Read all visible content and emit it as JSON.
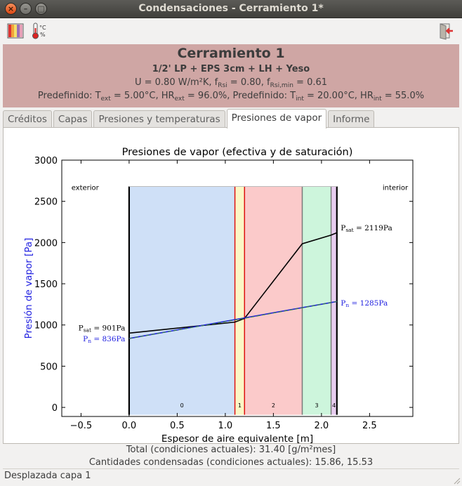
{
  "window": {
    "title": "Condensaciones - Cerramiento 1*",
    "close_glyph": "×",
    "minimize_glyph": "–",
    "maximize_glyph": "□"
  },
  "toolbar": {
    "icons": [
      "materials-colors-icon",
      "thermometer-humidity-icon",
      "exit-icon"
    ]
  },
  "header": {
    "title": "Cerramiento 1",
    "composition": "1/2' LP + EPS 3cm + LH + Yeso",
    "line3": {
      "u": "U = 0.80 W/m²K, f",
      "frsi_sub": "Rsi",
      "frsi_val": " = 0.80, f",
      "frsimin_sub": "Rsi,min",
      "frsimin_val": " = 0.61"
    },
    "line4": {
      "a": "Predefinido: T",
      "text_sub": "ext",
      "b": " = 5.00°C, HR",
      "hrext_sub": "ext",
      "c": " = 96.0%, Predefinido: T",
      "tint_sub": "int",
      "d": " = 20.00°C, HR",
      "hrint_sub": "int",
      "e": " = 55.0%"
    }
  },
  "tabs": [
    {
      "label": "Créditos",
      "active": false
    },
    {
      "label": "Capas",
      "active": false
    },
    {
      "label": "Presiones y temperaturas",
      "active": false
    },
    {
      "label": "Presiones de vapor",
      "active": true
    },
    {
      "label": "Informe",
      "active": false
    }
  ],
  "chart_data": {
    "type": "line",
    "title": "Presiones de vapor (efectiva y de saturación)",
    "xlabel": "Espesor de aire equivalente [m]",
    "ylabel": "Presión de vapor [Pa]",
    "xlim": [
      -0.7,
      2.95
    ],
    "ylim": [
      -110,
      3000
    ],
    "xticks": [
      -0.5,
      0.0,
      0.5,
      1.0,
      1.5,
      2.0,
      2.5
    ],
    "xtick_labels": [
      "−0.5",
      "0.0",
      "0.5",
      "1.0",
      "1.5",
      "2.0",
      "2.5"
    ],
    "yticks": [
      0,
      500,
      1000,
      1500,
      2000,
      2500,
      3000
    ],
    "side_labels": {
      "exterior": "exterior",
      "interior": "interior"
    },
    "layers": [
      {
        "label": "0",
        "x0": 0.0,
        "x1": 1.1,
        "color": "#cfe0f7"
      },
      {
        "label": "1",
        "x0": 1.1,
        "x1": 1.2,
        "color": "#fbf7c5"
      },
      {
        "label": "2",
        "x0": 1.2,
        "x1": 1.8,
        "color": "#fbcaca"
      },
      {
        "label": "3",
        "x0": 1.8,
        "x1": 2.1,
        "color": "#cdf5dc"
      },
      {
        "label": "4",
        "x0": 2.1,
        "x1": 2.16,
        "color": "#e8cdf0"
      }
    ],
    "layer_band_top": 2680,
    "series": [
      {
        "name": "Psat",
        "color": "#000000",
        "style": "solid",
        "x": [
          0.0,
          1.1,
          1.2,
          1.8,
          2.1,
          2.16
        ],
        "y": [
          901,
          1035,
          1080,
          1985,
          2090,
          2119
        ]
      },
      {
        "name": "Pn",
        "color": "#1f1fe0",
        "style": "solid",
        "x": [
          0.0,
          2.16
        ],
        "y": [
          836,
          1285
        ]
      },
      {
        "name": "",
        "color": "#3a8a3a",
        "style": "dashed",
        "x": [
          0.0,
          1.1,
          1.2,
          2.16
        ],
        "y": [
          836,
          1060,
          1080,
          1285
        ]
      }
    ],
    "annotations": {
      "psat_left": {
        "p": "P",
        "sub": "sat",
        "value": " = 901Pa",
        "x": -0.04,
        "y": 935
      },
      "pn_left": {
        "p": "P",
        "sub": "n",
        "value": " = 836Pa",
        "x": -0.04,
        "y": 800
      },
      "psat_right": {
        "p": "P",
        "sub": "sat",
        "value": " = 2119Pa",
        "x": 2.2,
        "y": 2150
      },
      "pn_right": {
        "p": "P",
        "sub": "n",
        "value": " = 1285Pa",
        "x": 2.2,
        "y": 1235
      }
    }
  },
  "footer": {
    "total": "Total (condiciones actuales): 31.40 [g/m²mes]",
    "condensed": "Cantidades condensadas (condiciones actuales): 15.86, 15.53"
  },
  "statusbar": {
    "text": "Desplazada capa 1"
  }
}
